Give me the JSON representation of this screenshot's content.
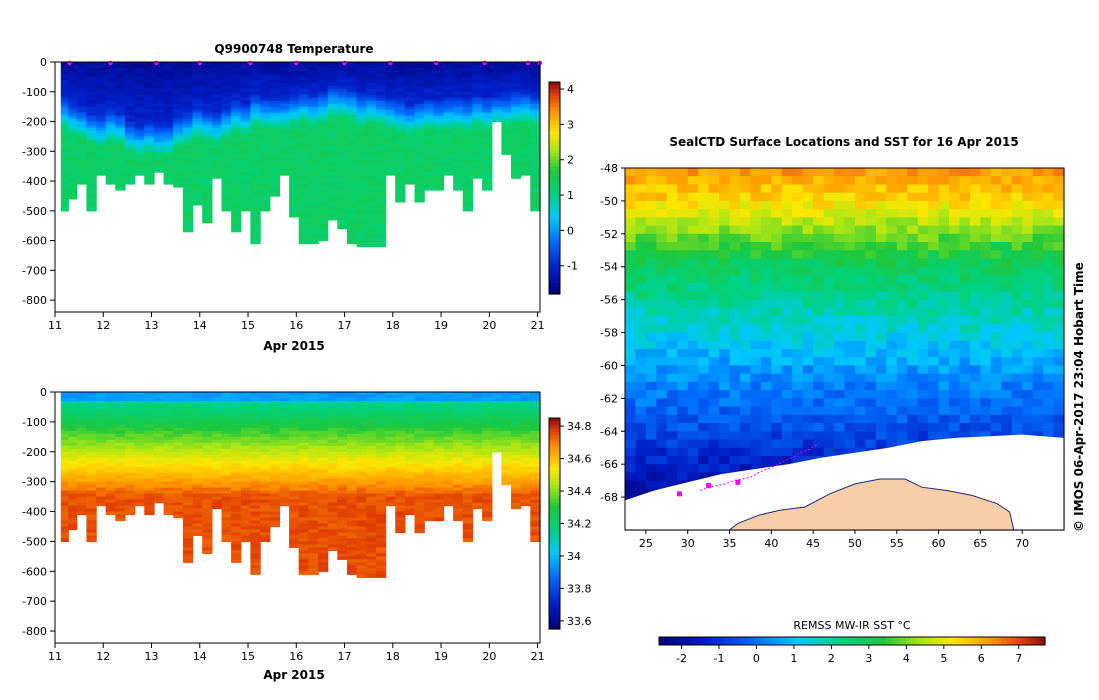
{
  "chart_data": [
    {
      "type": "heatmap",
      "title": "Q9900748  Temperature",
      "xlabel": "Apr 2015",
      "xlim": [
        11,
        21.05
      ],
      "xticks": [
        11,
        12,
        13,
        14,
        15,
        16,
        17,
        18,
        19,
        20,
        21
      ],
      "ylim": [
        -840,
        0
      ],
      "yticks": [
        0,
        -100,
        -200,
        -300,
        -400,
        -500,
        -600,
        -700,
        -800
      ],
      "colorbar": {
        "min": -1.8,
        "max": 4.2,
        "ticks": [
          4,
          3,
          2,
          1,
          0,
          -1
        ]
      },
      "profile_days": [
        11.2,
        11.35,
        11.55,
        11.75,
        11.95,
        12.15,
        12.35,
        12.55,
        12.75,
        12.95,
        13.15,
        13.35,
        13.55,
        13.75,
        13.95,
        14.15,
        14.35,
        14.55,
        14.75,
        14.95,
        15.15,
        15.35,
        15.55,
        15.75,
        15.95,
        16.15,
        16.35,
        16.55,
        16.75,
        16.95,
        17.15,
        17.35,
        17.55,
        17.75,
        17.95,
        18.15,
        18.35,
        18.55,
        18.75,
        18.95,
        19.15,
        19.35,
        19.55,
        19.75,
        19.95,
        20.15,
        20.35,
        20.55,
        20.75,
        20.95
      ],
      "profile_max_depth": [
        500,
        460,
        410,
        500,
        380,
        410,
        430,
        410,
        380,
        410,
        370,
        410,
        420,
        570,
        480,
        540,
        390,
        500,
        570,
        500,
        610,
        500,
        450,
        380,
        520,
        610,
        610,
        600,
        530,
        560,
        610,
        620,
        620,
        620,
        380,
        470,
        410,
        470,
        430,
        430,
        380,
        430,
        500,
        390,
        430,
        200,
        310,
        390,
        380,
        500
      ],
      "mixed_layer_depth": [
        120,
        140,
        150,
        170,
        180,
        160,
        170,
        200,
        210,
        200,
        210,
        210,
        180,
        170,
        150,
        160,
        170,
        150,
        130,
        140,
        110,
        120,
        120,
        120,
        110,
        100,
        110,
        100,
        80,
        80,
        90,
        110,
        100,
        110,
        120,
        130,
        140,
        130,
        120,
        130,
        120,
        120,
        130,
        110,
        120,
        110,
        110,
        100,
        100,
        110
      ],
      "surface_temperature": -1.5,
      "deep_temperature": 1.3,
      "profile_markers_days": [
        11.3,
        12.15,
        13.1,
        14.0,
        15.05,
        16.0,
        17.0,
        17.95,
        18.9,
        19.9,
        20.8,
        21.05
      ]
    },
    {
      "type": "heatmap",
      "title": "",
      "xlabel": "Apr 2015",
      "xlim": [
        11,
        21.05
      ],
      "xticks": [
        11,
        12,
        13,
        14,
        15,
        16,
        17,
        18,
        19,
        20,
        21
      ],
      "ylim": [
        -840,
        0
      ],
      "yticks": [
        0,
        -100,
        -200,
        -300,
        -400,
        -500,
        -600,
        -700,
        -800
      ],
      "colorbar": {
        "min": 33.55,
        "max": 34.85,
        "ticks": [
          34.8,
          34.6,
          34.4,
          34.2,
          34,
          33.8,
          33.6
        ]
      },
      "surface_salinity": 33.95,
      "deep_salinity": 34.75
    },
    {
      "type": "heatmap",
      "title": "SealCTD Surface Locations and SST for 16 Apr 2015",
      "xlabel": "",
      "ylabel": "",
      "xlim": [
        22.5,
        75
      ],
      "ylim": [
        -70,
        -48
      ],
      "xticks": [
        25,
        30,
        35,
        40,
        45,
        50,
        55,
        60,
        65,
        70
      ],
      "yticks": [
        -48,
        -50,
        -52,
        -54,
        -56,
        -58,
        -60,
        -62,
        -64,
        -66,
        -68
      ],
      "colorbar": {
        "label": "REMSS MW-IR SST °C",
        "min": -2.6,
        "max": 7.7,
        "ticks": [
          -2,
          -1,
          0,
          1,
          2,
          3,
          4,
          5,
          6,
          7
        ]
      },
      "sst_by_latitude": [
        [
          -48,
          6.2
        ],
        [
          -50,
          5.4
        ],
        [
          -52,
          4.0
        ],
        [
          -54,
          2.8
        ],
        [
          -56,
          2.1
        ],
        [
          -58,
          1.4
        ],
        [
          -60,
          0.6
        ],
        [
          -62,
          0.0
        ],
        [
          -64,
          -0.6
        ],
        [
          -66,
          -1.4
        ],
        [
          -68,
          -1.8
        ]
      ],
      "track_lon": [
        31.5,
        32.5,
        33.5,
        34.5,
        35.5,
        36.5,
        37.5,
        38.5,
        39.5,
        40.5,
        41.5,
        42.5,
        43.5,
        44.5,
        45.5
      ],
      "track_lat": [
        -67.6,
        -67.4,
        -67.3,
        -67.2,
        -67.0,
        -66.9,
        -66.8,
        -66.5,
        -66.3,
        -66.1,
        -65.8,
        -65.6,
        -65.3,
        -65.1,
        -64.8
      ],
      "surface_locations": [
        [
          29.0,
          -67.8
        ],
        [
          32.5,
          -67.3
        ],
        [
          36.0,
          -67.1
        ]
      ]
    }
  ],
  "credit": "©  IMOS 06-Apr-2017 23:04 Hobart Time",
  "colors": {
    "sea_ice": "#ffffff",
    "land": "#f8cda8",
    "track": "#ff00ff"
  }
}
